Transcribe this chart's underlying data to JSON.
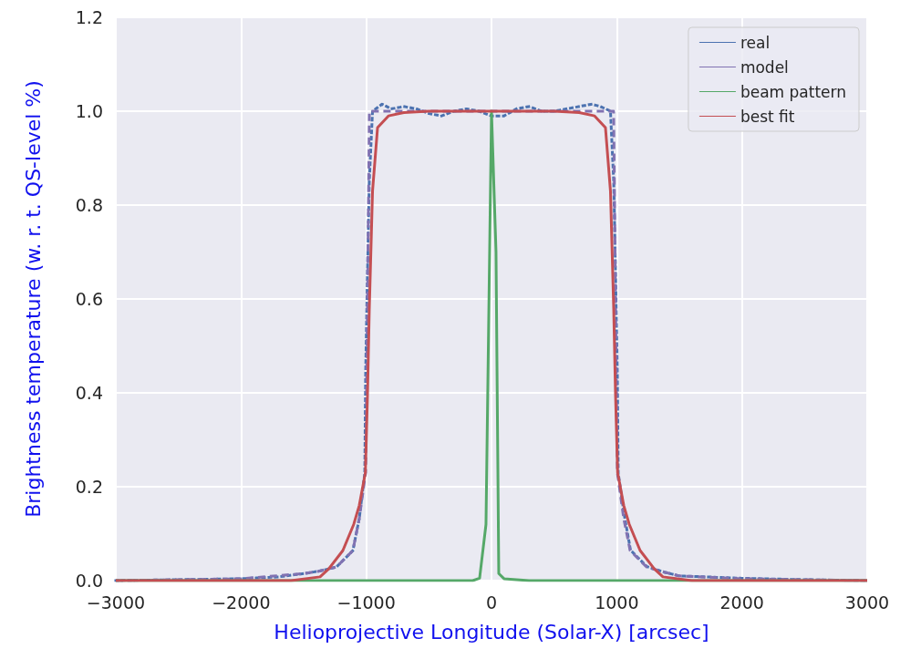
{
  "chart_data": {
    "type": "line",
    "xlabel": "Helioprojective Longitude (Solar-X) [arcsec]",
    "ylabel": "Brightness temperature (w. r. t. QS-level %)",
    "xlim": [
      -3000,
      3000
    ],
    "ylim": [
      0,
      1.2
    ],
    "xticks": [
      {
        "value": -3000,
        "label": "−3000"
      },
      {
        "value": -2000,
        "label": "−2000"
      },
      {
        "value": -1000,
        "label": "−1000"
      },
      0,
      1000,
      2000,
      3000
    ],
    "yticks": [
      {
        "value": 0,
        "label": "0.0"
      },
      0.2,
      0.4,
      0.6,
      0.8,
      {
        "value": 1,
        "label": "1.0"
      },
      1.2
    ],
    "grid": true,
    "legend": "top right",
    "marker": "none",
    "series": [
      {
        "name": "real",
        "color": "#4c72b0",
        "line_style": "dotted",
        "x": [
          -3000,
          -2500,
          -2000,
          -1700,
          -1500,
          -1380,
          -1238,
          -1107,
          -1056,
          -1012,
          -1005,
          -991,
          -976,
          -950,
          -874,
          -800,
          -700,
          -600,
          -500,
          -400,
          -300,
          -200,
          -100,
          0,
          100,
          200,
          300,
          400,
          500,
          600,
          700,
          800,
          870,
          950,
          976,
          991,
          1005,
          1012,
          1060,
          1110,
          1240,
          1380,
          1500,
          1700,
          2000,
          2500,
          3000
        ],
        "values": [
          0,
          0.002,
          0.004,
          0.008,
          0.015,
          0.02,
          0.029,
          0.064,
          0.132,
          0.229,
          0.44,
          0.65,
          0.85,
          1.0,
          1.015,
          1.005,
          1.01,
          1.005,
          0.995,
          0.99,
          1.0,
          1.005,
          1.0,
          0.99,
          0.99,
          1.005,
          1.01,
          1.0,
          1.0,
          1.005,
          1.01,
          1.015,
          1.01,
          1.0,
          0.85,
          0.65,
          0.44,
          0.229,
          0.14,
          0.065,
          0.03,
          0.018,
          0.01,
          0.008,
          0.005,
          0.002,
          0
        ]
      },
      {
        "name": "model",
        "color": "#8172b2",
        "line_style": "dashed",
        "x": [
          -3000,
          -2500,
          -2000,
          -1500,
          -1380,
          -1238,
          -1107,
          -1056,
          -1005,
          -975,
          975,
          1005,
          1056,
          1107,
          1238,
          1380,
          1500,
          2000,
          2500,
          3000
        ],
        "values": [
          0,
          0.002,
          0.004,
          0.015,
          0.02,
          0.029,
          0.064,
          0.132,
          0.23,
          1.0,
          1.0,
          0.23,
          0.132,
          0.064,
          0.029,
          0.018,
          0.01,
          0.004,
          0.002,
          0
        ]
      },
      {
        "name": "beam pattern",
        "color": "#55a868",
        "line_style": "solid",
        "x": [
          -3000,
          -2000,
          -1000,
          -300,
          -150,
          -95,
          -44,
          0,
          36,
          58,
          100,
          200,
          300,
          1000,
          2000,
          3000
        ],
        "values": [
          0,
          0,
          0,
          0,
          0,
          0.005,
          0.12,
          1.0,
          0.7,
          0.015,
          0.004,
          0.002,
          0,
          0,
          0,
          0
        ]
      },
      {
        "name": "best fit",
        "color": "#c44e52",
        "line_style": "solid",
        "x": [
          -3000,
          -2000,
          -1600,
          -1369,
          -1300,
          -1187,
          -1100,
          -1056,
          -1007,
          -990,
          -976,
          -950,
          -910,
          -823,
          -700,
          -500,
          0,
          500,
          700,
          823,
          910,
          950,
          976,
          990,
          1007,
          1056,
          1100,
          1187,
          1300,
          1369,
          1600,
          2000,
          3000
        ],
        "values": [
          0,
          0,
          0,
          0.008,
          0.025,
          0.064,
          0.12,
          0.16,
          0.23,
          0.4,
          0.577,
          0.83,
          0.965,
          0.99,
          0.997,
          1.0,
          1.0,
          1.0,
          0.997,
          0.99,
          0.965,
          0.83,
          0.577,
          0.4,
          0.23,
          0.16,
          0.12,
          0.064,
          0.025,
          0.008,
          0,
          0,
          0
        ]
      }
    ]
  }
}
